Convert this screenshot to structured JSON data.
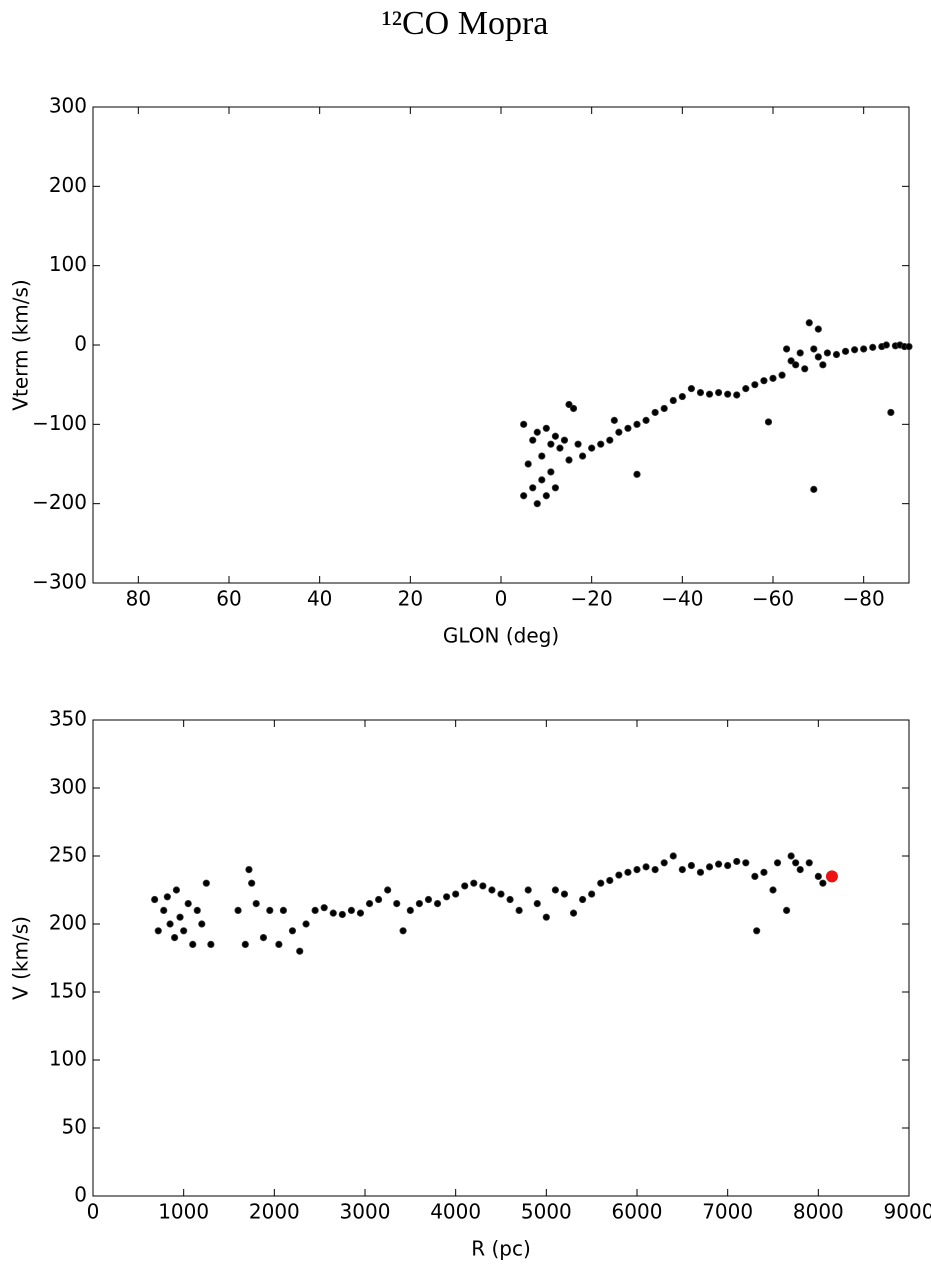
{
  "title": "¹²CO Mopra",
  "chart_data": [
    {
      "type": "scatter",
      "xlabel": "GLON (deg)",
      "ylabel": "Vterm (km/s)",
      "xlim": [
        90,
        -90
      ],
      "ylim": [
        -300,
        300
      ],
      "xticks": [
        80,
        60,
        40,
        20,
        0,
        {
          "value": -20,
          "label": "−20"
        },
        {
          "value": -40,
          "label": "−40"
        },
        {
          "value": -60,
          "label": "−60"
        },
        {
          "value": -80,
          "label": "−80"
        }
      ],
      "yticks": [
        {
          "value": -300,
          "label": "−300"
        },
        {
          "value": -200,
          "label": "−200"
        },
        {
          "value": -100,
          "label": "−100"
        },
        0,
        100,
        200,
        300
      ],
      "series": [
        {
          "color": "#000000",
          "x": [
            -5,
            -5,
            -6,
            -7,
            -7,
            -8,
            -8,
            -9,
            -9,
            -10,
            -10,
            -11,
            -11,
            -12,
            -12,
            -13,
            -14,
            -15,
            -16,
            -15,
            -17,
            -18,
            -20,
            -22,
            -24,
            -25,
            -26,
            -28,
            -30,
            -30,
            -32,
            -34,
            -36,
            -38,
            -40,
            -42,
            -44,
            -46,
            -48,
            -50,
            -52,
            -54,
            -56,
            -58,
            -59,
            -60,
            -62,
            -63,
            -64,
            -65,
            -66,
            -67,
            -68,
            -69,
            -69,
            -70,
            -70,
            -71,
            -72,
            -74,
            -76,
            -78,
            -80,
            -82,
            -84,
            -85,
            -86,
            -87,
            -88,
            -89,
            -90
          ],
          "values": [
            -100,
            -190,
            -150,
            -120,
            -180,
            -110,
            -200,
            -140,
            -170,
            -105,
            -190,
            -125,
            -160,
            -115,
            -180,
            -130,
            -120,
            -75,
            -80,
            -145,
            -125,
            -140,
            -130,
            -125,
            -120,
            -95,
            -110,
            -105,
            -100,
            -163,
            -95,
            -85,
            -80,
            -70,
            -65,
            -55,
            -60,
            -62,
            -60,
            -62,
            -63,
            -55,
            -50,
            -45,
            -97,
            -42,
            -38,
            -5,
            -20,
            -25,
            -10,
            -30,
            28,
            -182,
            -5,
            20,
            -15,
            -25,
            -10,
            -12,
            -8,
            -6,
            -5,
            -3,
            -2,
            0,
            -85,
            -1,
            0,
            -2,
            -2
          ]
        }
      ]
    },
    {
      "type": "scatter",
      "xlabel": "R (pc)",
      "ylabel": "V (km/s)",
      "xlim": [
        0,
        9000
      ],
      "ylim": [
        0,
        350
      ],
      "xticks": [
        0,
        1000,
        2000,
        3000,
        4000,
        5000,
        6000,
        7000,
        8000,
        9000
      ],
      "yticks": [
        0,
        50,
        100,
        150,
        200,
        250,
        300,
        350
      ],
      "series": [
        {
          "color": "#000000",
          "x": [
            680,
            720,
            780,
            820,
            850,
            900,
            920,
            960,
            1000,
            1050,
            1100,
            1150,
            1200,
            1250,
            1300,
            1600,
            1680,
            1720,
            1750,
            1800,
            1880,
            1950,
            2050,
            2100,
            2200,
            2280,
            2350,
            2450,
            2550,
            2650,
            2750,
            2850,
            2950,
            3050,
            3150,
            3250,
            3350,
            3420,
            3500,
            3600,
            3700,
            3800,
            3900,
            4000,
            4100,
            4200,
            4300,
            4400,
            4500,
            4600,
            4700,
            4800,
            4900,
            5000,
            5100,
            5200,
            5300,
            5400,
            5500,
            5600,
            5700,
            5800,
            5900,
            6000,
            6100,
            6200,
            6300,
            6400,
            6500,
            6600,
            6700,
            6800,
            6900,
            7000,
            7100,
            7200,
            7300,
            7320,
            7400,
            7500,
            7550,
            7650,
            7700,
            7750,
            7800,
            7900,
            8000,
            8050
          ],
          "values": [
            218,
            195,
            210,
            220,
            200,
            190,
            225,
            205,
            195,
            215,
            185,
            210,
            200,
            230,
            185,
            210,
            185,
            240,
            230,
            215,
            190,
            210,
            185,
            210,
            195,
            180,
            200,
            210,
            212,
            208,
            207,
            210,
            208,
            215,
            218,
            225,
            215,
            195,
            210,
            215,
            218,
            215,
            220,
            222,
            228,
            230,
            228,
            225,
            222,
            218,
            210,
            225,
            215,
            205,
            225,
            222,
            208,
            218,
            222,
            230,
            232,
            236,
            238,
            240,
            242,
            240,
            245,
            250,
            240,
            243,
            238,
            242,
            244,
            243,
            246,
            245,
            235,
            195,
            238,
            225,
            245,
            210,
            250,
            245,
            240,
            245,
            235,
            230
          ]
        },
        {
          "color": "#ee1111",
          "x": [
            8150
          ],
          "values": [
            235
          ]
        }
      ]
    }
  ]
}
